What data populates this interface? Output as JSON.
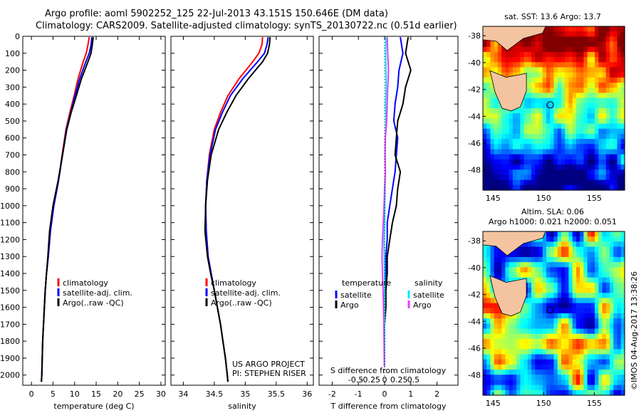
{
  "title": {
    "line1": "Argo profile: aoml 5902252_125 22-Jul-2013 43.151S 150.646E (DM data)",
    "line2": "Climatology: CARS2009. Satellite-adjusted climatology: synTS_20130722.nc (0.51d earlier)"
  },
  "credit": "©IMOS 04-Aug-2017 13:38:26",
  "colors": {
    "climatology": "#ff0000",
    "satellite": "#0000ff",
    "argo": "#000000",
    "temp_satellite": "#0000ff",
    "sal_satellite": "#00e5ff",
    "sal_argo": "#e040ff",
    "land": "#f4c4a0"
  },
  "chart_data": [
    {
      "type": "line",
      "name": "temperature-profile",
      "xlabel": "temperature (deg C)",
      "ylabel": "",
      "xlim": [
        -2,
        31
      ],
      "ylim": [
        2060,
        0
      ],
      "xticks": [
        0,
        5,
        10,
        15,
        20,
        25,
        30
      ],
      "yticks": [
        0,
        100,
        200,
        300,
        400,
        500,
        600,
        700,
        800,
        900,
        1000,
        1100,
        1200,
        1300,
        1400,
        1500,
        1600,
        1700,
        1800,
        1900,
        2000
      ],
      "legend": {
        "position": "lower-left",
        "items": [
          {
            "label": "climatology",
            "color": "#ff0000"
          },
          {
            "label": "satellite-adj. clim.",
            "color": "#0000ff"
          },
          {
            "label": "Argo(..raw -QC)",
            "color": "#000000"
          }
        ]
      },
      "series": [
        {
          "name": "climatology",
          "color": "#ff0000",
          "x": [
            13.4,
            13.1,
            12.7,
            12.0,
            10.8,
            9.9,
            8.9,
            8.0,
            7.1,
            6.3,
            5.2,
            4.4,
            3.9,
            3.5,
            3.2,
            3.0,
            2.8,
            2.6,
            2.5,
            2.4,
            2.3
          ],
          "y": [
            5,
            50,
            100,
            150,
            250,
            350,
            450,
            550,
            700,
            850,
            1000,
            1150,
            1300,
            1400,
            1500,
            1600,
            1700,
            1800,
            1900,
            2000,
            2040
          ]
        },
        {
          "name": "satellite-adj. clim.",
          "color": "#0000ff",
          "x": [
            14.0,
            13.8,
            13.4,
            12.6,
            11.2,
            10.1,
            9.1,
            8.1,
            7.2,
            6.3,
            5.2,
            4.4,
            3.9,
            3.5,
            3.2,
            3.0,
            2.8,
            2.6,
            2.5,
            2.4,
            2.3
          ],
          "y": [
            5,
            50,
            100,
            150,
            250,
            350,
            450,
            550,
            700,
            850,
            1000,
            1150,
            1300,
            1400,
            1500,
            1600,
            1700,
            1800,
            1900,
            2000,
            2040
          ]
        },
        {
          "name": "Argo(..raw -QC)",
          "color": "#000000",
          "x": [
            14.3,
            14.1,
            13.8,
            13.1,
            11.6,
            10.4,
            9.2,
            8.2,
            7.2,
            6.2,
            5.0,
            4.2,
            3.8,
            3.5,
            3.2,
            3.0,
            2.8,
            2.6,
            2.5,
            2.4,
            2.3
          ],
          "y": [
            5,
            50,
            100,
            150,
            250,
            350,
            450,
            550,
            700,
            850,
            1000,
            1150,
            1300,
            1400,
            1500,
            1600,
            1700,
            1800,
            1900,
            2000,
            2040
          ]
        }
      ]
    },
    {
      "type": "line",
      "name": "salinity-profile",
      "xlabel": "salinity",
      "xlim": [
        33.8,
        36.1
      ],
      "ylim": [
        2060,
        0
      ],
      "xticks": [
        34,
        34.5,
        35,
        35.5,
        36
      ],
      "legend": {
        "position": "lower-left",
        "items": [
          {
            "label": "climatology",
            "color": "#ff0000"
          },
          {
            "label": "satellite-adj. clim.",
            "color": "#0000ff"
          },
          {
            "label": "Argo(..raw -QC)",
            "color": "#000000"
          }
        ]
      },
      "annotations": [
        "US ARGO PROJECT",
        "PI: STEPHEN RISER"
      ],
      "series": [
        {
          "name": "climatology",
          "color": "#ff0000",
          "x": [
            35.28,
            35.27,
            35.22,
            35.12,
            34.9,
            34.72,
            34.6,
            34.5,
            34.42,
            34.38,
            34.36,
            34.37,
            34.4,
            34.45,
            34.5,
            34.55,
            34.6,
            34.64,
            34.68,
            34.71,
            34.72
          ],
          "y": [
            5,
            50,
            100,
            150,
            250,
            350,
            450,
            550,
            700,
            850,
            1000,
            1150,
            1300,
            1400,
            1500,
            1600,
            1700,
            1800,
            1900,
            2000,
            2040
          ]
        },
        {
          "name": "satellite-adj. clim.",
          "color": "#0000ff",
          "x": [
            35.37,
            35.35,
            35.31,
            35.2,
            34.96,
            34.76,
            34.63,
            34.52,
            34.43,
            34.38,
            34.36,
            34.37,
            34.4,
            34.45,
            34.5,
            34.55,
            34.6,
            34.64,
            34.68,
            34.71,
            34.72
          ],
          "y": [
            5,
            50,
            100,
            150,
            250,
            350,
            450,
            550,
            700,
            850,
            1000,
            1150,
            1300,
            1400,
            1500,
            1600,
            1700,
            1800,
            1900,
            2000,
            2040
          ]
        },
        {
          "name": "Argo(..raw -QC)",
          "color": "#000000",
          "x": [
            35.4,
            35.39,
            35.36,
            35.28,
            35.05,
            34.85,
            34.7,
            34.57,
            34.45,
            34.39,
            34.36,
            34.35,
            34.39,
            34.44,
            34.5,
            34.55,
            34.6,
            34.64,
            34.68,
            34.71,
            34.72
          ],
          "y": [
            5,
            50,
            100,
            150,
            250,
            350,
            450,
            550,
            700,
            850,
            1000,
            1150,
            1300,
            1400,
            1500,
            1600,
            1700,
            1800,
            1900,
            2000,
            2040
          ]
        }
      ]
    },
    {
      "type": "line",
      "name": "difference-profile",
      "xlabel": "T difference from climatology",
      "xlabel_top": "S difference from climatology",
      "xlim": [
        -2.5,
        2.8
      ],
      "ylim": [
        2060,
        0
      ],
      "xticks": [
        -2,
        -1,
        0,
        1,
        2
      ],
      "secondary_xticks": [
        "-0.5",
        "-0.25",
        "0",
        "0.25",
        "0.5"
      ],
      "legend": {
        "position": "lower",
        "items": [
          {
            "group": "temperature",
            "label": "satellite",
            "color": "#0000ff"
          },
          {
            "group": "temperature",
            "label": "Argo",
            "color": "#000000"
          },
          {
            "group": "salinity",
            "label": "satellite",
            "color": "#00e5ff"
          },
          {
            "group": "salinity",
            "label": "Argo",
            "color": "#e040ff"
          }
        ],
        "group_labels": [
          "temperature",
          "salinity"
        ]
      },
      "series": [
        {
          "name": "temperature satellite",
          "color": "#0000ff",
          "x": [
            0.6,
            0.7,
            0.55,
            0.5,
            0.4,
            0.35,
            0.5,
            0.45,
            0.4,
            0.3,
            0.2,
            0.1,
            0.1,
            0.05,
            0.05,
            0.0,
            0.0,
            0.0,
            0.0,
            0.0
          ],
          "y": [
            5,
            100,
            200,
            300,
            400,
            500,
            600,
            700,
            800,
            900,
            1000,
            1100,
            1200,
            1300,
            1400,
            1500,
            1600,
            1700,
            1800,
            1950
          ]
        },
        {
          "name": "temperature Argo",
          "color": "#000000",
          "x": [
            0.9,
            0.8,
            1.0,
            0.8,
            0.7,
            0.5,
            0.45,
            0.4,
            0.6,
            0.5,
            0.45,
            0.3,
            0.2,
            0.1,
            0.1,
            0.05,
            0.05,
            0.0,
            0.0,
            0.0
          ],
          "y": [
            5,
            100,
            200,
            300,
            400,
            500,
            600,
            700,
            800,
            900,
            1000,
            1100,
            1200,
            1300,
            1400,
            1500,
            1600,
            1700,
            1800,
            1950
          ]
        },
        {
          "name": "salinity satellite",
          "color": "#00e5ff",
          "x": [
            0.05,
            0.04,
            0.05,
            0.06,
            0.04,
            0.05,
            0.03,
            0.02,
            0.03,
            0.02,
            0.01,
            0.0,
            -0.02,
            -0.01,
            0.0,
            0.0,
            0.0,
            0.0,
            0.0,
            0.0
          ],
          "y": [
            5,
            100,
            200,
            300,
            400,
            500,
            600,
            700,
            800,
            900,
            1000,
            1100,
            1200,
            1300,
            1400,
            1500,
            1600,
            1700,
            1800,
            1950
          ]
        },
        {
          "name": "salinity Argo",
          "color": "#e040ff",
          "x": [
            0.1,
            0.12,
            0.15,
            0.12,
            0.1,
            0.08,
            0.03,
            0.02,
            0.03,
            0.0,
            -0.02,
            -0.05,
            -0.08,
            -0.1,
            -0.08,
            -0.06,
            -0.04,
            -0.03,
            -0.02,
            -0.01
          ],
          "y": [
            5,
            100,
            200,
            300,
            400,
            500,
            600,
            700,
            800,
            900,
            1000,
            1100,
            1200,
            1300,
            1400,
            1500,
            1600,
            1700,
            1800,
            1950
          ]
        }
      ]
    },
    {
      "type": "heatmap",
      "name": "sst-map",
      "title": "sat. SST: 13.6  Argo: 13.7",
      "xticks": [
        145,
        150,
        155
      ],
      "yticks": [
        -38,
        -40,
        -42,
        -44,
        -46,
        -48
      ],
      "xlim": [
        144,
        158
      ],
      "ylim": [
        -49.5,
        -37.3
      ],
      "float_position": {
        "lon": 150.646,
        "lat": -43.151
      }
    },
    {
      "type": "heatmap",
      "name": "sla-map",
      "title": "Altim. SLA: 0.06",
      "subtitle": "Argo h1000: 0.021 h2000: 0.051",
      "xticks": [
        145,
        150,
        155
      ],
      "yticks": [
        -38,
        -40,
        -42,
        -44,
        -46,
        -48
      ],
      "xlim": [
        144,
        158
      ],
      "ylim": [
        -49.5,
        -37.3
      ],
      "float_position": {
        "lon": 150.646,
        "lat": -43.151
      }
    }
  ]
}
